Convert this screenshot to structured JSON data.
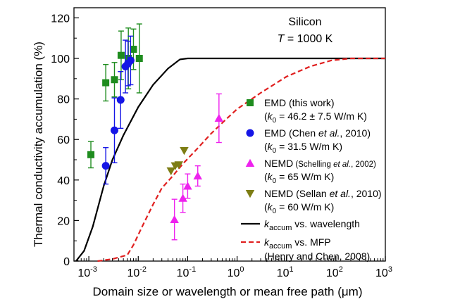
{
  "chart_data": {
    "type": "scatter",
    "xscale": "log",
    "xlim": [
      0.0005,
      1000
    ],
    "ylim": [
      0,
      125
    ],
    "xlabel": "Domain size or wavelength or mean free path (μm)",
    "ylabel": "Thermal conductivity accumulation (%)",
    "x_ticks": [
      {
        "value": 0.001,
        "base": "10",
        "exp": "-3"
      },
      {
        "value": 0.01,
        "base": "10",
        "exp": "-2"
      },
      {
        "value": 0.1,
        "base": "10",
        "exp": "-1"
      },
      {
        "value": 1,
        "base": "10",
        "exp": "0"
      },
      {
        "value": 10,
        "base": "10",
        "exp": "1"
      },
      {
        "value": 100,
        "base": "10",
        "exp": "2"
      },
      {
        "value": 1000,
        "base": "10",
        "exp": "3"
      }
    ],
    "y_ticks": [
      0,
      20,
      40,
      60,
      80,
      100,
      120
    ],
    "annotation": {
      "line1": "Silicon",
      "line2_italic": "T",
      "line2_rest": " = 1000 K"
    },
    "series": [
      {
        "name": "EMD (this work)",
        "sub_prefix": "(",
        "sub_k": "k",
        "sub_sub": "0",
        "sub_rest": " = 46.2 ± 7.5 W/m K)",
        "marker": "square",
        "color": "#1e8c1e",
        "points": [
          {
            "x": 0.0011,
            "y": 52.5,
            "err": 6.5
          },
          {
            "x": 0.0022,
            "y": 88,
            "err": 9
          },
          {
            "x": 0.0033,
            "y": 89.5,
            "err": 8.5
          },
          {
            "x": 0.0045,
            "y": 101.5,
            "err": 12
          },
          {
            "x": 0.0063,
            "y": 100,
            "err": 15
          },
          {
            "x": 0.008,
            "y": 104.5,
            "err": 10
          },
          {
            "x": 0.0105,
            "y": 100,
            "err": 17
          }
        ]
      },
      {
        "name": "EMD (Chen ",
        "name_italic": "et al.",
        "name_rest": ", 2010)",
        "sub_prefix": "(",
        "sub_k": "k",
        "sub_sub": "0",
        "sub_rest": " = 31.5 W/m K)",
        "marker": "circle",
        "color": "#1515e6",
        "points": [
          {
            "x": 0.0022,
            "y": 47,
            "err": 9
          },
          {
            "x": 0.0033,
            "y": 64.5,
            "err": 16
          },
          {
            "x": 0.0044,
            "y": 79.5,
            "err": 14
          },
          {
            "x": 0.0055,
            "y": 96,
            "err": 13
          },
          {
            "x": 0.0062,
            "y": 97.5,
            "err": 11
          },
          {
            "x": 0.007,
            "y": 99,
            "err": 12
          }
        ]
      },
      {
        "name": "NEMD",
        "name_small": " (Schelling ",
        "name_small_italic": "et al.",
        "name_small_rest": ", 2002)",
        "sub_prefix": "(",
        "sub_k": "k",
        "sub_sub": "0",
        "sub_rest": " = 65 W/m K)",
        "marker": "triangle-up",
        "color": "#ee22ee",
        "points": [
          {
            "x": 0.054,
            "y": 20.5,
            "err": 10
          },
          {
            "x": 0.08,
            "y": 31,
            "err": 7
          },
          {
            "x": 0.1,
            "y": 37,
            "err": 6
          },
          {
            "x": 0.16,
            "y": 42,
            "err": 5
          },
          {
            "x": 0.43,
            "y": 70.5,
            "err": 12
          }
        ]
      },
      {
        "name": "NEMD (Sellan ",
        "name_italic": "et al.",
        "name_rest": ", 2010)",
        "sub_prefix": "(",
        "sub_k": "k",
        "sub_sub": "0",
        "sub_rest": " = 60 W/m K)",
        "marker": "triangle-down",
        "color": "#7d7d14",
        "points": [
          {
            "x": 0.046,
            "y": 44.5,
            "err": 0
          },
          {
            "x": 0.056,
            "y": 47,
            "err": 0
          },
          {
            "x": 0.066,
            "y": 47.5,
            "err": 0
          },
          {
            "x": 0.085,
            "y": 54.5,
            "err": 0
          }
        ]
      }
    ],
    "lines": [
      {
        "name_k": "k",
        "name_sub": "accum",
        "name_rest": " vs. wavelength",
        "color": "#000000",
        "dash": "solid",
        "points": [
          [
            0.00055,
            0
          ],
          [
            0.0008,
            5
          ],
          [
            0.0012,
            17
          ],
          [
            0.002,
            37
          ],
          [
            0.003,
            50
          ],
          [
            0.005,
            62
          ],
          [
            0.01,
            76
          ],
          [
            0.02,
            87
          ],
          [
            0.04,
            95
          ],
          [
            0.07,
            99.5
          ],
          [
            0.1,
            100
          ],
          [
            1000,
            100
          ]
        ]
      },
      {
        "name_k": "k",
        "name_sub": "accum",
        "name_rest": " vs. MFP",
        "extra": "(Henry and Chen, 2008)",
        "color": "#e02020",
        "dash": "dashed",
        "points": [
          [
            0.0015,
            0
          ],
          [
            0.003,
            1
          ],
          [
            0.006,
            3
          ],
          [
            0.008,
            8
          ],
          [
            0.012,
            17
          ],
          [
            0.02,
            28
          ],
          [
            0.03,
            36
          ],
          [
            0.05,
            42
          ],
          [
            0.08,
            48
          ],
          [
            0.15,
            55
          ],
          [
            0.3,
            63
          ],
          [
            0.6,
            70
          ],
          [
            1,
            75
          ],
          [
            3,
            83
          ],
          [
            10,
            91
          ],
          [
            30,
            96
          ],
          [
            80,
            99
          ],
          [
            200,
            100
          ],
          [
            1000,
            100
          ]
        ]
      }
    ]
  }
}
